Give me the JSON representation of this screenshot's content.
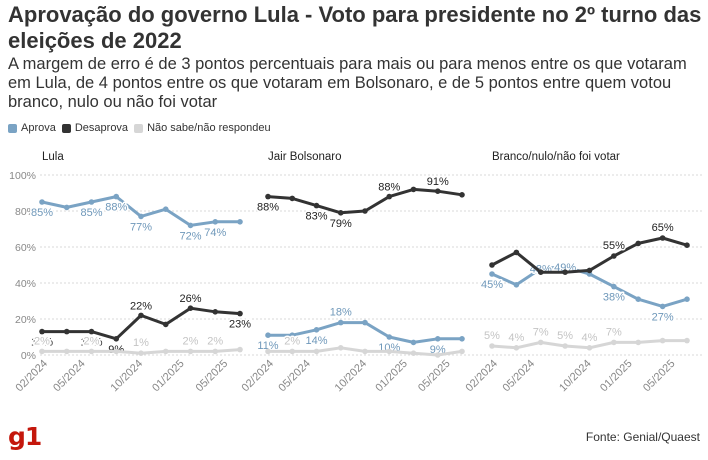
{
  "title": "Aprovação do governo Lula - Voto para presidente no 2º turno das eleições de 2022",
  "subtitle": "A margem de erro é de 3 pontos percentuais para mais ou para menos entre os que votaram em Lula, de 4 pontos entre os que votaram em Bolsonaro, e de 5 pontos entre quem votou branco, nulo ou não foi votar",
  "source": "Fonte: Genial/Quaest",
  "logo": "g1",
  "colors": {
    "aprova": "#7aa3c4",
    "desaprova": "#333333",
    "nao_sabe": "#d6d6d6",
    "grid": "#d9d9d9"
  },
  "chart_data": [
    {
      "type": "line",
      "title": "Lula",
      "ylim": [
        0,
        100
      ],
      "y_ticks": [
        "0%",
        "20%",
        "40%",
        "60%",
        "80%",
        "100%"
      ],
      "x_tick_labels": [
        "02/2024",
        "05/2024",
        "10/2024",
        "01/2025",
        "05/2025"
      ],
      "series": [
        {
          "name": "Aprova",
          "values": [
            85,
            82,
            85,
            88,
            77,
            81,
            72,
            74,
            74
          ],
          "labels": [
            "85%",
            "",
            "85%",
            "88%",
            "77%",
            "",
            "72%",
            "74%",
            ""
          ]
        },
        {
          "name": "Desaprova",
          "values": [
            13,
            13,
            13,
            9,
            22,
            17,
            26,
            24,
            23
          ],
          "labels": [
            "13%",
            "",
            "13%",
            "9%",
            "22%",
            "",
            "26%",
            "",
            "23%"
          ]
        },
        {
          "name": "Não sabe/não respondeu",
          "values": [
            2,
            2,
            2,
            2,
            1,
            2,
            2,
            2,
            3
          ],
          "labels": [
            "2%",
            "",
            "2%",
            "",
            "1%",
            "",
            "2%",
            "2%",
            ""
          ]
        }
      ]
    },
    {
      "type": "line",
      "title": "Jair Bolsonaro",
      "ylim": [
        0,
        100
      ],
      "x_tick_labels": [
        "02/2024",
        "05/2024",
        "10/2024",
        "01/2025",
        "05/2025"
      ],
      "series": [
        {
          "name": "Aprova",
          "values": [
            11,
            11,
            14,
            18,
            18,
            10,
            7,
            9,
            9
          ],
          "labels": [
            "11%",
            "",
            "14%",
            "18%",
            "",
            "10%",
            "",
            "9%",
            ""
          ]
        },
        {
          "name": "Desaprova",
          "values": [
            88,
            87,
            83,
            79,
            80,
            88,
            92,
            91,
            89
          ],
          "labels": [
            "88%",
            "",
            "83%",
            "79%",
            "",
            "88%",
            "",
            "91%",
            ""
          ]
        },
        {
          "name": "Não sabe/não respondeu",
          "values": [
            2,
            2,
            2,
            4,
            2,
            2,
            1,
            0,
            2
          ],
          "labels": [
            "",
            "2%",
            "",
            "",
            "",
            "",
            "",
            "",
            ""
          ]
        }
      ]
    },
    {
      "type": "line",
      "title": "Branco/nulo/não foi votar",
      "ylim": [
        0,
        100
      ],
      "x_tick_labels": [
        "02/2024",
        "05/2024",
        "10/2024",
        "01/2025",
        "05/2025"
      ],
      "series": [
        {
          "name": "Aprova",
          "values": [
            45,
            39,
            48,
            49,
            45,
            38,
            31,
            27,
            31
          ],
          "labels": [
            "45%",
            "",
            "48%",
            "49%",
            "",
            "38%",
            "",
            "27%",
            ""
          ]
        },
        {
          "name": "Desaprova",
          "values": [
            50,
            57,
            46,
            46,
            47,
            55,
            62,
            65,
            61
          ],
          "labels": [
            "",
            "",
            "",
            "",
            "",
            "55%",
            "",
            "65%",
            ""
          ]
        },
        {
          "name": "Não sabe/não respondeu",
          "values": [
            5,
            4,
            7,
            5,
            4,
            7,
            7,
            8,
            8
          ],
          "labels": [
            "5%",
            "4%",
            "7%",
            "5%",
            "4%",
            "7%",
            "",
            "",
            ""
          ]
        }
      ]
    }
  ]
}
